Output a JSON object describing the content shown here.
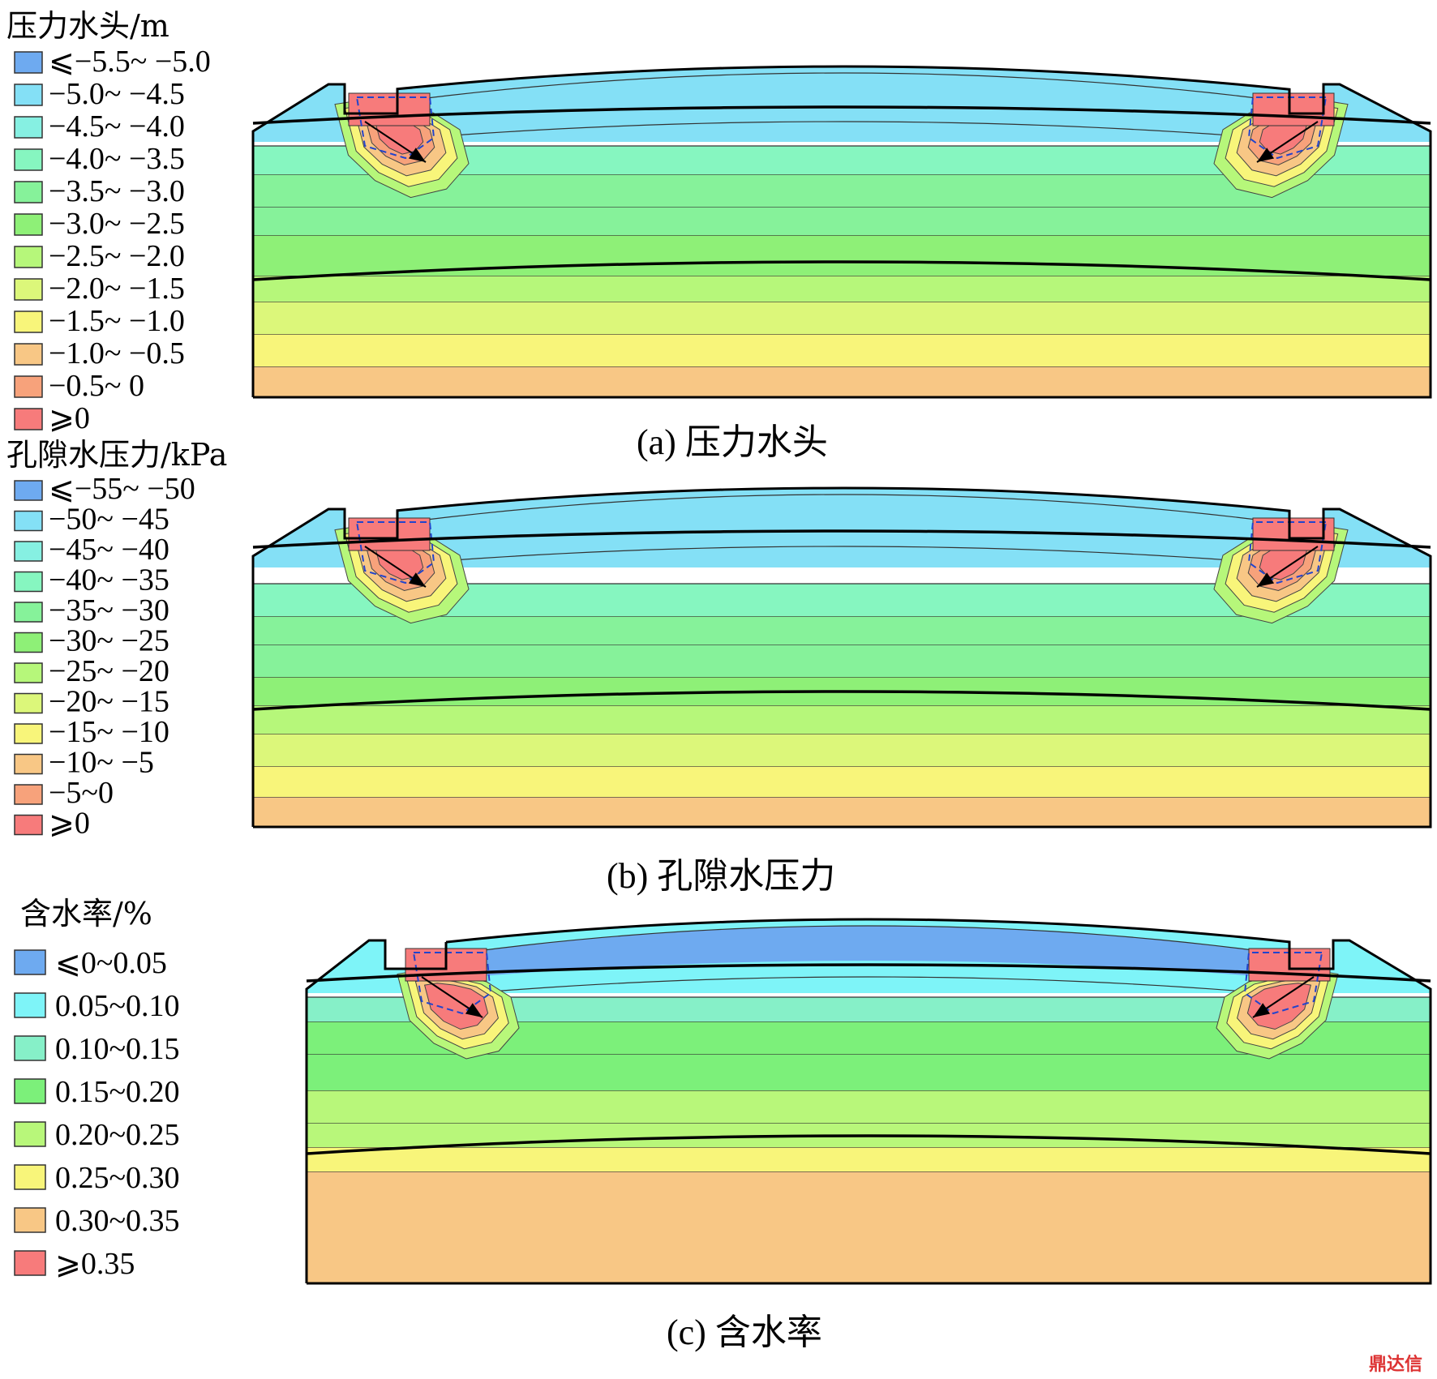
{
  "figure": {
    "panels": [
      {
        "legend_title": "压力水头/m",
        "caption": "(a) 压力水头",
        "legend": [
          "⩽−5.5~ −5.0",
          "−5.0~ −4.5",
          "−4.5~ −4.0",
          "−4.0~ −3.5",
          "−3.5~ −3.0",
          "−3.0~ −2.5",
          "−2.5~ −2.0",
          "−2.0~ −1.5",
          "−1.5~ −1.0",
          "−1.0~ −0.5",
          "−0.5~ 0",
          "⩾0"
        ],
        "colors": [
          "#6eaaf0",
          "#84e0f6",
          "#86f0e2",
          "#86f6c0",
          "#86f29a",
          "#8ef077",
          "#b6f77a",
          "#dcf77a",
          "#f8f57a",
          "#f8c785",
          "#f7a27b",
          "#f77b7b"
        ]
      },
      {
        "legend_title": "孔隙水压力/kPa",
        "caption": "(b) 孔隙水压力",
        "legend": [
          "⩽−55~ −50",
          "−50~ −45",
          "−45~ −40",
          "−40~ −35",
          "−35~ −30",
          "−30~ −25",
          "−25~ −20",
          "−20~ −15",
          "−15~ −10",
          "−10~ −5",
          "−5~0",
          "⩾0"
        ],
        "colors": [
          "#6eaaf0",
          "#84e0f6",
          "#86f0e2",
          "#86f6c0",
          "#86f29a",
          "#8ef077",
          "#b6f77a",
          "#dcf77a",
          "#f8f57a",
          "#f8c785",
          "#f7a27b",
          "#f77b7b"
        ]
      },
      {
        "legend_title": "含水率/%",
        "caption": "(c) 含水率",
        "legend": [
          "⩽0~0.05",
          "0.05~0.10",
          "0.10~0.15",
          "0.15~0.20",
          "0.20~0.25",
          "0.25~0.30",
          "0.30~0.35",
          "⩾0.35"
        ],
        "colors": [
          "#6eaaf0",
          "#7ef4f8",
          "#86f0c8",
          "#7cf07a",
          "#b8f77a",
          "#f8f57a",
          "#f8c785",
          "#f77b7b"
        ]
      }
    ],
    "watermark": "鼎达信"
  }
}
